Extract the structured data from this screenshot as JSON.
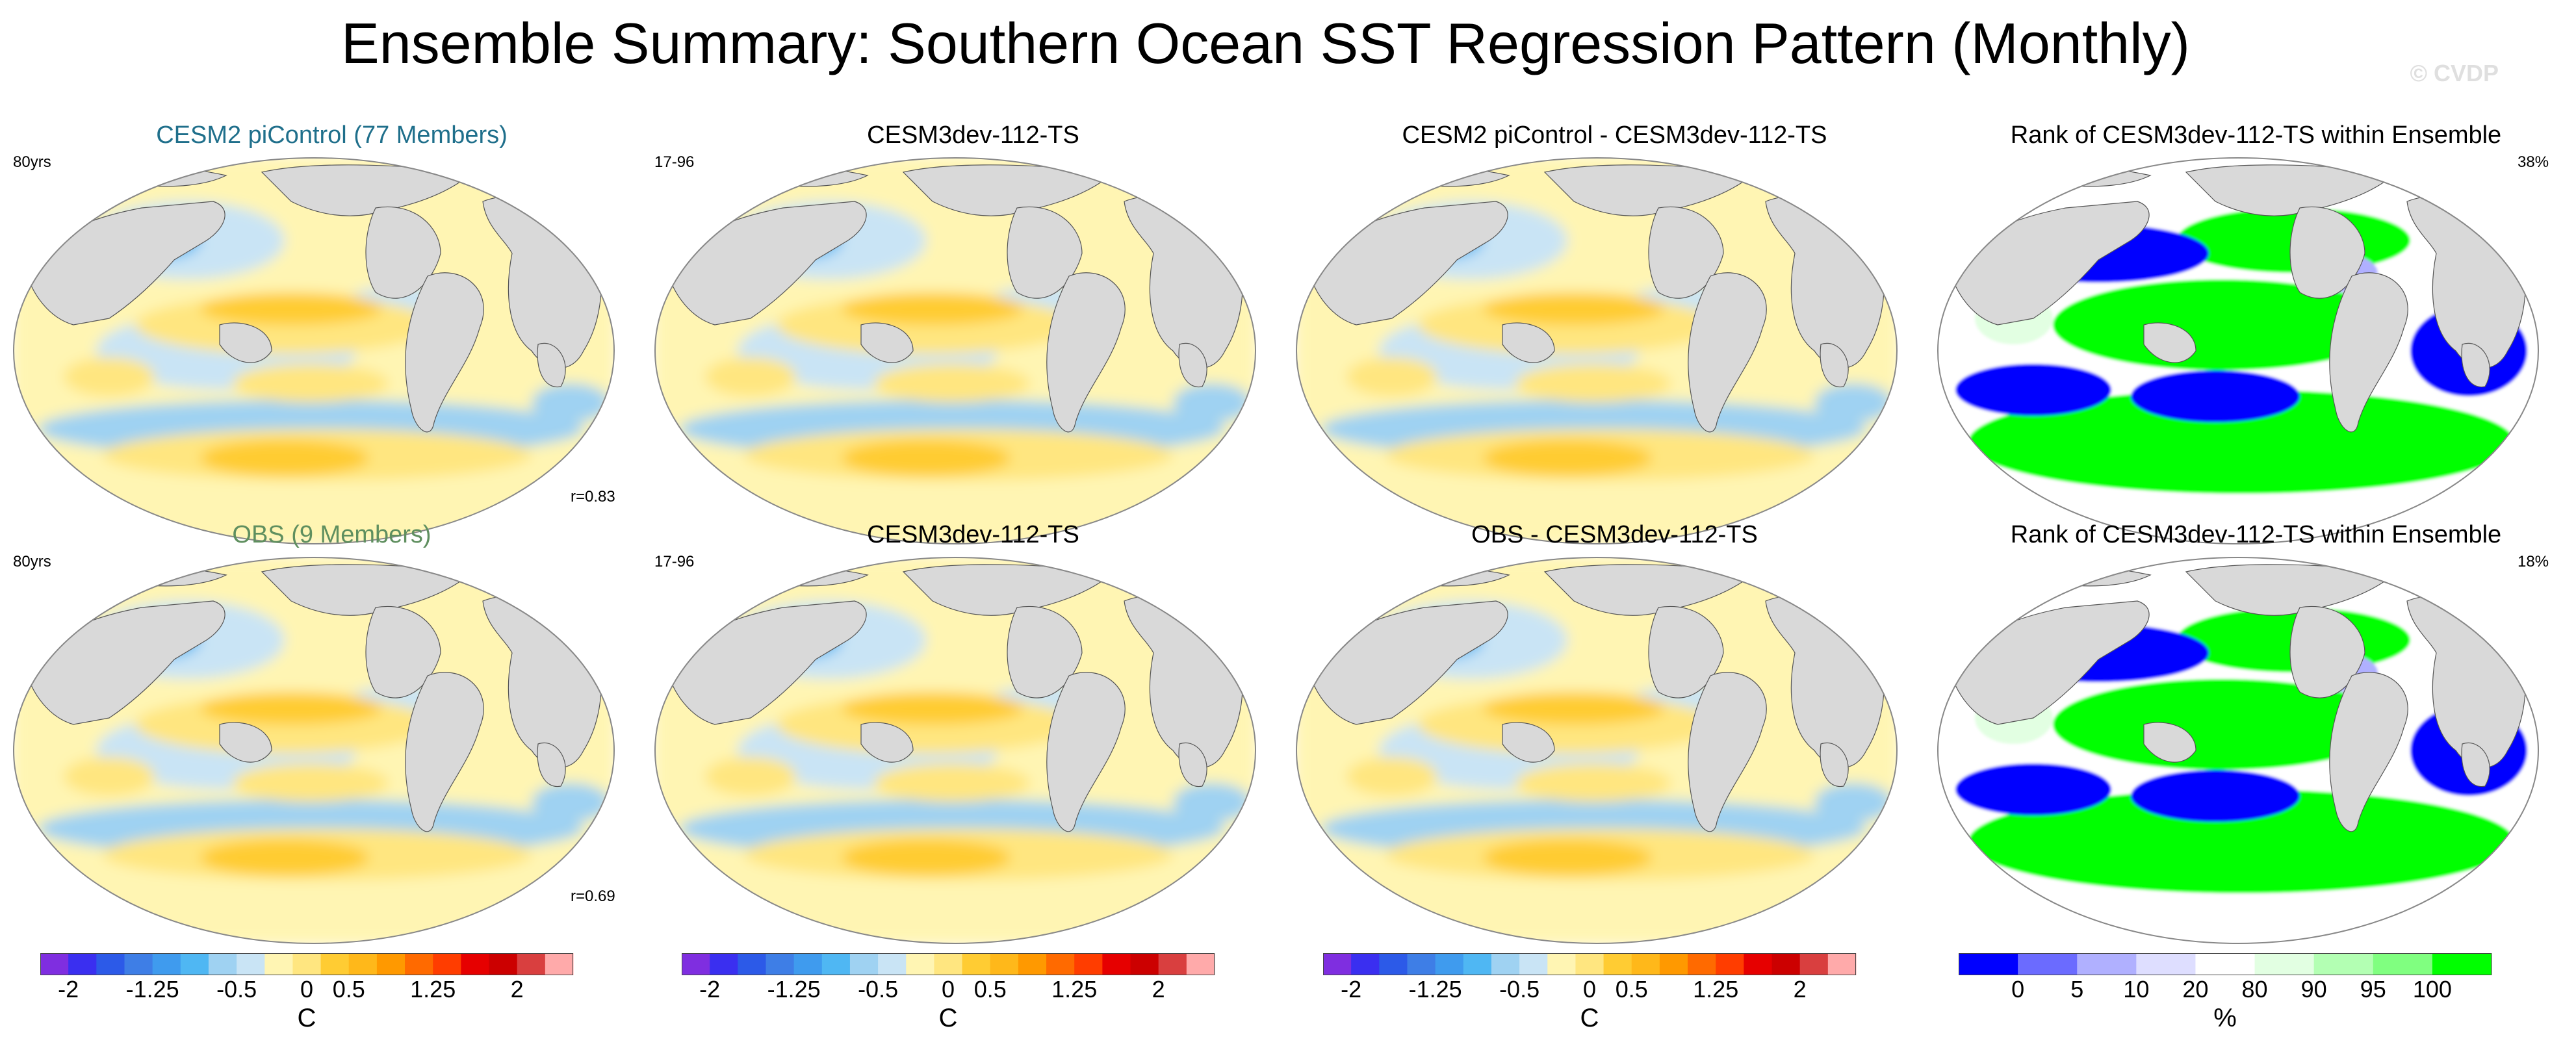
{
  "title": "Ensemble Summary: Southern Ocean SST Regression Pattern (Monthly)",
  "watermark": "© CVDP",
  "colors": {
    "land": "#d9d9d9",
    "title_ensemble": "#1f6f8b",
    "title_obs": "#5f8f5f",
    "regression_scale": [
      "#7f2ee0",
      "#3a2ff0",
      "#2c5ae8",
      "#3e7ee6",
      "#3f9bee",
      "#4fb7f3",
      "#9fd2f2",
      "#c9e4f5",
      "#fff5b3",
      "#ffe680",
      "#ffcc33",
      "#ffb81a",
      "#ff9900",
      "#ff6a00",
      "#ff3d00",
      "#e60000",
      "#cc0000",
      "#d93f3f",
      "#ffaaaa"
    ],
    "rank_scale": [
      "#0000ff",
      "#6b6bff",
      "#b0b0ff",
      "#dedeff",
      "#ffffff",
      "#e2ffe2",
      "#b3ffb3",
      "#80ff80",
      "#00ff00"
    ]
  },
  "panels": {
    "r1c1": {
      "title": "CESM2 piControl (77 Members)",
      "left": "80yrs",
      "right": "",
      "br": "r=0.83"
    },
    "r1c2": {
      "title": "CESM3dev-112-TS",
      "left": "17-96",
      "right": "",
      "br": ""
    },
    "r1c3": {
      "title": "CESM2 piControl - CESM3dev-112-TS",
      "left": "",
      "right": "",
      "br": ""
    },
    "r1c4": {
      "title": "Rank of CESM3dev-112-TS within Ensemble",
      "left": "",
      "right": "38%",
      "br": ""
    },
    "r2c1": {
      "title": "OBS (9 Members)",
      "left": "80yrs",
      "right": "",
      "br": "r=0.69"
    },
    "r2c2": {
      "title": "CESM3dev-112-TS",
      "left": "17-96",
      "right": "",
      "br": ""
    },
    "r2c3": {
      "title": "OBS - CESM3dev-112-TS",
      "left": "",
      "right": "",
      "br": ""
    },
    "r2c4": {
      "title": "Rank of CESM3dev-112-TS within Ensemble",
      "left": "",
      "right": "18%",
      "br": ""
    }
  },
  "colorbars": {
    "regression": {
      "ticks": [
        "-2",
        "-1.25",
        "-0.5",
        "0",
        "0.5",
        "1.25",
        "2"
      ],
      "unit": "C"
    },
    "rank": {
      "ticks": [
        "0",
        "5",
        "10",
        "20",
        "80",
        "90",
        "95",
        "100"
      ],
      "unit": "%"
    }
  },
  "chart_data": {
    "type": "heatmap",
    "title": "Ensemble Summary: Southern Ocean SST Regression Pattern (Monthly)",
    "projection": "Robinson (global map)",
    "regression_levels": [
      -2,
      -1.75,
      -1.5,
      -1.25,
      -1,
      -0.75,
      -0.5,
      -0.25,
      0,
      0.25,
      0.5,
      0.75,
      1,
      1.25,
      1.5,
      1.75,
      2
    ],
    "regression_units": "C",
    "rank_levels": [
      0,
      5,
      10,
      20,
      80,
      90,
      95,
      100
    ],
    "rank_units": "%",
    "panels": [
      {
        "row": 1,
        "col": 1,
        "title": "CESM2 piControl (77 Members)",
        "years": "80yrs",
        "pattern_correlation": 0.83
      },
      {
        "row": 1,
        "col": 2,
        "title": "CESM3dev-112-TS",
        "years": "17-96"
      },
      {
        "row": 1,
        "col": 3,
        "title": "CESM2 piControl - CESM3dev-112-TS"
      },
      {
        "row": 1,
        "col": 4,
        "title": "Rank of CESM3dev-112-TS within Ensemble",
        "percent": "38%"
      },
      {
        "row": 2,
        "col": 1,
        "title": "OBS (9 Members)",
        "years": "80yrs",
        "pattern_correlation": 0.69
      },
      {
        "row": 2,
        "col": 2,
        "title": "CESM3dev-112-TS",
        "years": "17-96"
      },
      {
        "row": 2,
        "col": 3,
        "title": "OBS - CESM3dev-112-TS"
      },
      {
        "row": 2,
        "col": 4,
        "title": "Rank of CESM3dev-112-TS within Ensemble",
        "percent": "18%"
      }
    ]
  }
}
